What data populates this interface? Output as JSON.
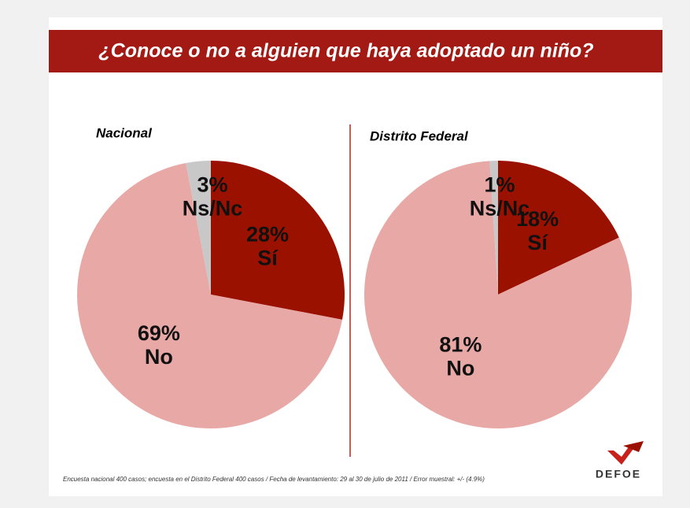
{
  "title": "¿Conoce o no a alguien que haya adoptado un niño?",
  "footnote": "Encuesta nacional 400 casos; encuesta en el Distrito Federal 400 casos / Fecha de levantamiento:  29 al 30 de julio de 2011 / Error muestral: +/- (4.9%)",
  "logo": "DEFOE",
  "chart_data": [
    {
      "type": "pie",
      "title": "Nacional",
      "categories": [
        "Sí",
        "No",
        "Ns/Nc"
      ],
      "values": [
        28,
        69,
        3
      ],
      "value_labels": [
        "28%",
        "69%",
        "3%"
      ],
      "colors": [
        "#9b1100",
        "#e8a8a6",
        "#c8c8c8"
      ]
    },
    {
      "type": "pie",
      "title": "Distrito Federal",
      "categories": [
        "Sí",
        "No",
        "Ns/Nc"
      ],
      "values": [
        18,
        81,
        1
      ],
      "value_labels": [
        "18%",
        "81%",
        "1%"
      ],
      "colors": [
        "#9b1100",
        "#e8a8a6",
        "#c8c8c8"
      ]
    }
  ]
}
